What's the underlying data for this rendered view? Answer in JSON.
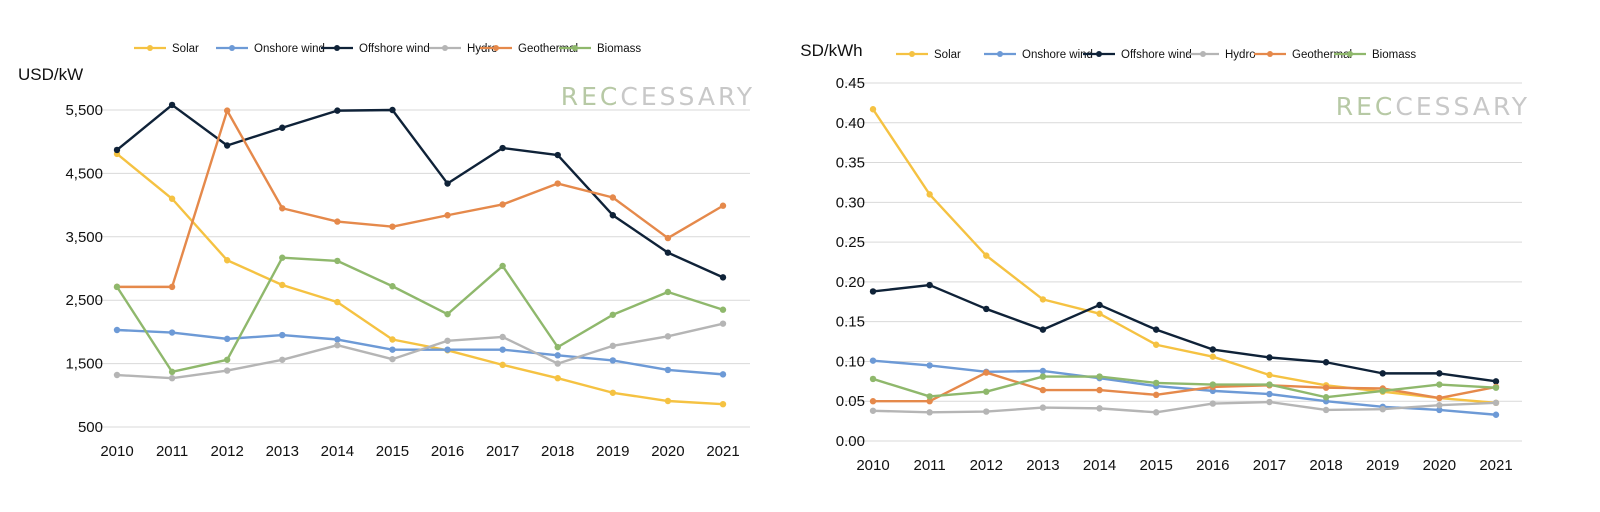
{
  "watermark": "RECCESSARY",
  "chart_data": [
    {
      "type": "line",
      "ylabel": "USD/kW",
      "ylim": [
        500,
        5500
      ],
      "yticks": [
        "500",
        "1,500",
        "2,500",
        "3,500",
        "4,500",
        "5,500"
      ],
      "grid": "horizontal",
      "legend_position": "top",
      "categories": [
        "2010",
        "2011",
        "2012",
        "2013",
        "2014",
        "2015",
        "2016",
        "2017",
        "2018",
        "2019",
        "2020",
        "2021"
      ],
      "series": [
        {
          "name": "Solar",
          "color": "#f5c242",
          "values": [
            4808,
            4100,
            3130,
            2740,
            2470,
            1880,
            1710,
            1480,
            1270,
            1040,
            910,
            860
          ]
        },
        {
          "name": "Onshore wind",
          "color": "#6d9ad6",
          "values": [
            2030,
            1990,
            1890,
            1950,
            1880,
            1720,
            1720,
            1720,
            1630,
            1550,
            1400,
            1330
          ]
        },
        {
          "name": "Offshore wind",
          "color": "#0f2238",
          "values": [
            4870,
            5580,
            4940,
            5220,
            5490,
            5500,
            4340,
            4900,
            4790,
            3840,
            3250,
            2860
          ]
        },
        {
          "name": "Hydro",
          "color": "#b5b5b5",
          "values": [
            1320,
            1270,
            1390,
            1560,
            1790,
            1570,
            1860,
            1920,
            1500,
            1780,
            1930,
            2130
          ]
        },
        {
          "name": "Geothermal",
          "color": "#e5894b",
          "values": [
            2710,
            2710,
            5490,
            3950,
            3740,
            3660,
            3840,
            4010,
            4340,
            4120,
            3480,
            3990
          ]
        },
        {
          "name": "Biomass",
          "color": "#8fb86c",
          "values": [
            2710,
            1370,
            1560,
            3170,
            3120,
            2720,
            2280,
            3040,
            1760,
            2270,
            2630,
            2350
          ]
        }
      ]
    },
    {
      "type": "line",
      "ylabel": "USD/kWh",
      "ylim": [
        0,
        0.45
      ],
      "yticks": [
        "0.00",
        "0.05",
        "0.10",
        "0.15",
        "0.20",
        "0.25",
        "0.30",
        "0.35",
        "0.40",
        "0.45"
      ],
      "grid": "horizontal",
      "legend_position": "top",
      "categories": [
        "2010",
        "2011",
        "2012",
        "2013",
        "2014",
        "2015",
        "2016",
        "2017",
        "2018",
        "2019",
        "2020",
        "2021"
      ],
      "series": [
        {
          "name": "Solar",
          "color": "#f5c242",
          "values": [
            0.417,
            0.31,
            0.233,
            0.178,
            0.16,
            0.121,
            0.106,
            0.083,
            0.07,
            0.062,
            0.054,
            0.048
          ]
        },
        {
          "name": "Onshore wind",
          "color": "#6d9ad6",
          "values": [
            0.101,
            0.095,
            0.087,
            0.088,
            0.079,
            0.069,
            0.063,
            0.059,
            0.05,
            0.043,
            0.039,
            0.033
          ]
        },
        {
          "name": "Offshore wind",
          "color": "#0f2238",
          "values": [
            0.188,
            0.196,
            0.166,
            0.14,
            0.171,
            0.14,
            0.115,
            0.105,
            0.099,
            0.085,
            0.085,
            0.075
          ]
        },
        {
          "name": "Hydro",
          "color": "#b5b5b5",
          "values": [
            0.038,
            0.036,
            0.037,
            0.042,
            0.041,
            0.036,
            0.047,
            0.049,
            0.039,
            0.04,
            0.045,
            0.048
          ]
        },
        {
          "name": "Geothermal",
          "color": "#e5894b",
          "values": [
            0.05,
            0.05,
            0.086,
            0.064,
            0.064,
            0.058,
            0.068,
            0.07,
            0.067,
            0.066,
            0.054,
            0.068
          ]
        },
        {
          "name": "Biomass",
          "color": "#8fb86c",
          "values": [
            0.078,
            0.056,
            0.062,
            0.081,
            0.081,
            0.073,
            0.071,
            0.071,
            0.055,
            0.063,
            0.071,
            0.067
          ]
        }
      ]
    }
  ]
}
